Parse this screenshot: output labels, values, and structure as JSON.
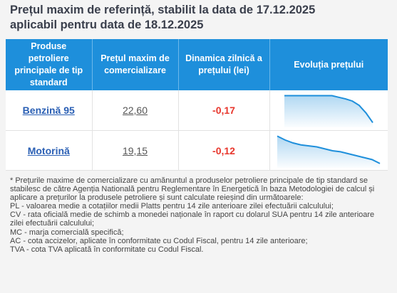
{
  "title_line1": "Prețul maxim de referință, stabilit la data de 17.12.2025",
  "title_line2": "aplicabil pentru data de 18.12.2025",
  "headers": {
    "products": "Produse petroliere principale de tip standard",
    "max_price": "Prețul maxim de comercializare",
    "dynamics": "Dinamica zilnică a prețului (lei)",
    "evolution": "Evoluția prețului"
  },
  "rows": [
    {
      "product": "Benzină 95",
      "price": "22,60",
      "dynamics": "-0,17",
      "trend": [
        10,
        10,
        10,
        10,
        10,
        10,
        10,
        10,
        9.85,
        9.7,
        9.5,
        9.1,
        8.4,
        7.5
      ]
    },
    {
      "product": "Motorină",
      "price": "19,15",
      "dynamics": "-0,12",
      "trend": [
        10,
        9.6,
        9.3,
        9.1,
        9.0,
        8.9,
        8.7,
        8.5,
        8.4,
        8.2,
        8.0,
        7.8,
        7.6,
        7.2
      ]
    }
  ],
  "notes": [
    "* Prețurile maxime de comercializare cu amănuntul a produselor petroliere principale de tip standard se stabilesc de către Agenția Natională pentru Reglementare în Energetică în baza Metodologiei de calcul și aplicare a prețurilor la produsele petroliere și sunt calculate reieșind din următoarele:",
    "PL - valoarea medie a cotațiilor medii Platts pentru 14 zile anterioare zilei efectuării calculului;",
    "CV - rata oficială medie de schimb a monedei naționale în raport cu dolarul SUA pentru 14 zile anterioare zilei efectuării calculului;",
    "MC - marja comercială specifică;",
    "AC - cota accizelor, aplicate în conformitate cu Codul Fiscal, pentru 14 zile anterioare;",
    "TVA - cota TVA aplicată în conformitate cu Codul Fiscal."
  ],
  "colors": {
    "header_bg": "#1e8fdb",
    "link": "#2a5fb4",
    "negative": "#e8362c",
    "sparkline": "#1e8fdb"
  }
}
